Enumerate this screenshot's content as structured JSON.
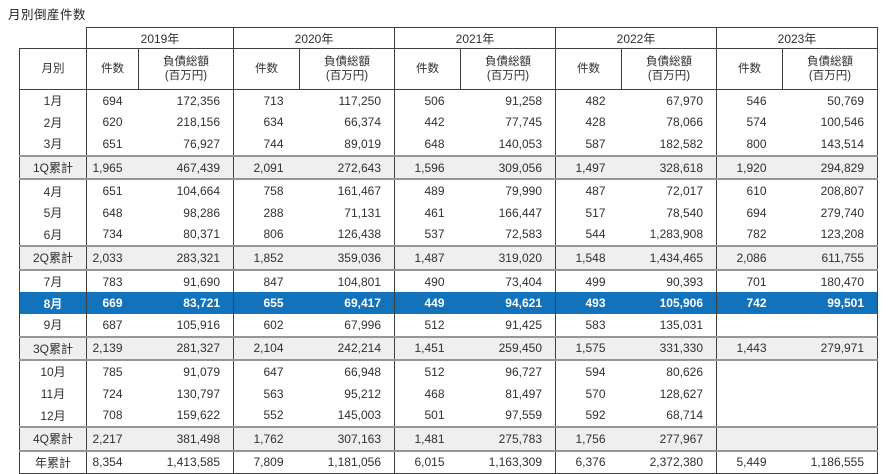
{
  "page_title": "月別倒産件数",
  "colors": {
    "highlight_row_bg": "#1272bc",
    "highlight_row_text": "#ffffff",
    "subtotal_row_bg": "#efefef",
    "grid_line": "#3f3f3f",
    "group_line": "#969696",
    "text": "#303030"
  },
  "chart_data": {
    "type": "table",
    "title": "月別倒産件数",
    "row_label_header": "月別",
    "year_headers": [
      "2019年",
      "2020年",
      "2021年",
      "2022年",
      "2023年"
    ],
    "sub_columns": {
      "count": "件数",
      "debt_line1": "負債総額",
      "debt_line2": "(百万円)"
    },
    "highlighted_row_label": "8月",
    "rows": [
      {
        "label": "1月",
        "kind": "month",
        "cells": [
          "694",
          "172,356",
          "713",
          "117,250",
          "506",
          "91,258",
          "482",
          "67,970",
          "546",
          "50,769"
        ]
      },
      {
        "label": "2月",
        "kind": "month",
        "cells": [
          "620",
          "218,156",
          "634",
          "66,374",
          "442",
          "77,745",
          "428",
          "78,066",
          "574",
          "100,546"
        ]
      },
      {
        "label": "3月",
        "kind": "month",
        "cells": [
          "651",
          "76,927",
          "744",
          "89,019",
          "648",
          "140,053",
          "587",
          "182,582",
          "800",
          "143,514"
        ]
      },
      {
        "label": "1Q累計",
        "kind": "subtotal",
        "cells": [
          "1,965",
          "467,439",
          "2,091",
          "272,643",
          "1,596",
          "309,056",
          "1,497",
          "328,618",
          "1,920",
          "294,829"
        ]
      },
      {
        "label": "4月",
        "kind": "month",
        "cells": [
          "651",
          "104,664",
          "758",
          "161,467",
          "489",
          "79,990",
          "487",
          "72,017",
          "610",
          "208,807"
        ]
      },
      {
        "label": "5月",
        "kind": "month",
        "cells": [
          "648",
          "98,286",
          "288",
          "71,131",
          "461",
          "166,447",
          "517",
          "78,540",
          "694",
          "279,740"
        ]
      },
      {
        "label": "6月",
        "kind": "month",
        "cells": [
          "734",
          "80,371",
          "806",
          "126,438",
          "537",
          "72,583",
          "544",
          "1,283,908",
          "782",
          "123,208"
        ]
      },
      {
        "label": "2Q累計",
        "kind": "subtotal",
        "cells": [
          "2,033",
          "283,321",
          "1,852",
          "359,036",
          "1,487",
          "319,020",
          "1,548",
          "1,434,465",
          "2,086",
          "611,755"
        ]
      },
      {
        "label": "7月",
        "kind": "month",
        "cells": [
          "783",
          "91,690",
          "847",
          "104,801",
          "490",
          "73,404",
          "499",
          "90,393",
          "701",
          "180,470"
        ]
      },
      {
        "label": "8月",
        "kind": "highlight",
        "cells": [
          "669",
          "83,721",
          "655",
          "69,417",
          "449",
          "94,621",
          "493",
          "105,906",
          "742",
          "99,501"
        ]
      },
      {
        "label": "9月",
        "kind": "month",
        "cells": [
          "687",
          "105,916",
          "602",
          "67,996",
          "512",
          "91,425",
          "583",
          "135,031",
          "",
          ""
        ]
      },
      {
        "label": "3Q累計",
        "kind": "subtotal",
        "cells": [
          "2,139",
          "281,327",
          "2,104",
          "242,214",
          "1,451",
          "259,450",
          "1,575",
          "331,330",
          "1,443",
          "279,971"
        ]
      },
      {
        "label": "10月",
        "kind": "month",
        "cells": [
          "785",
          "91,079",
          "647",
          "66,948",
          "512",
          "96,727",
          "594",
          "80,626",
          "",
          ""
        ]
      },
      {
        "label": "11月",
        "kind": "month",
        "cells": [
          "724",
          "130,797",
          "563",
          "95,212",
          "468",
          "81,497",
          "570",
          "128,627",
          "",
          ""
        ]
      },
      {
        "label": "12月",
        "kind": "month",
        "cells": [
          "708",
          "159,622",
          "552",
          "145,003",
          "501",
          "97,559",
          "592",
          "68,714",
          "",
          ""
        ]
      },
      {
        "label": "4Q累計",
        "kind": "subtotal",
        "cells": [
          "2,217",
          "381,498",
          "1,762",
          "307,163",
          "1,481",
          "275,783",
          "1,756",
          "277,967",
          "",
          ""
        ]
      },
      {
        "label": "年累計",
        "kind": "total",
        "cells": [
          "8,354",
          "1,413,585",
          "7,809",
          "1,181,056",
          "6,015",
          "1,163,309",
          "6,376",
          "2,372,380",
          "5,449",
          "1,186,555"
        ]
      }
    ]
  }
}
